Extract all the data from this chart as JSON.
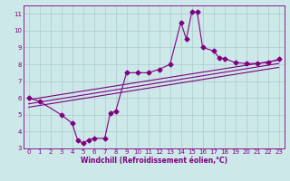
{
  "xlabel": "Windchill (Refroidissement éolien,°C)",
  "ylabel": "",
  "bg_color": "#cde8e8",
  "line_color": "#800080",
  "grid_color": "#aacccc",
  "xlim": [
    -0.5,
    23.5
  ],
  "ylim": [
    3,
    11.5
  ],
  "xticks": [
    0,
    1,
    2,
    3,
    4,
    5,
    6,
    7,
    8,
    9,
    10,
    11,
    12,
    13,
    14,
    15,
    16,
    17,
    18,
    19,
    20,
    21,
    22,
    23
  ],
  "yticks": [
    3,
    4,
    5,
    6,
    7,
    8,
    9,
    10,
    11
  ],
  "main_x": [
    0,
    1,
    3,
    4,
    4.5,
    5,
    5.5,
    6,
    7,
    7.5,
    8,
    9,
    10,
    11,
    12,
    13,
    14,
    14.5,
    15,
    15.5,
    16,
    17,
    17.5,
    18,
    19,
    20,
    21,
    22,
    23
  ],
  "main_y": [
    6.0,
    5.8,
    5.0,
    4.5,
    3.5,
    3.3,
    3.5,
    3.6,
    3.6,
    5.1,
    5.2,
    7.5,
    7.5,
    7.5,
    7.7,
    8.0,
    10.5,
    9.5,
    11.1,
    11.1,
    9.0,
    8.8,
    8.4,
    8.35,
    8.1,
    8.05,
    8.05,
    8.1,
    8.3
  ],
  "line1_x": [
    0,
    23
  ],
  "line1_y": [
    5.9,
    8.25
  ],
  "line2_x": [
    0,
    23
  ],
  "line2_y": [
    5.65,
    8.05
  ],
  "line3_x": [
    0,
    23
  ],
  "line3_y": [
    5.45,
    7.82
  ],
  "marker": "D",
  "markersize": 2.5,
  "linewidth": 0.8
}
